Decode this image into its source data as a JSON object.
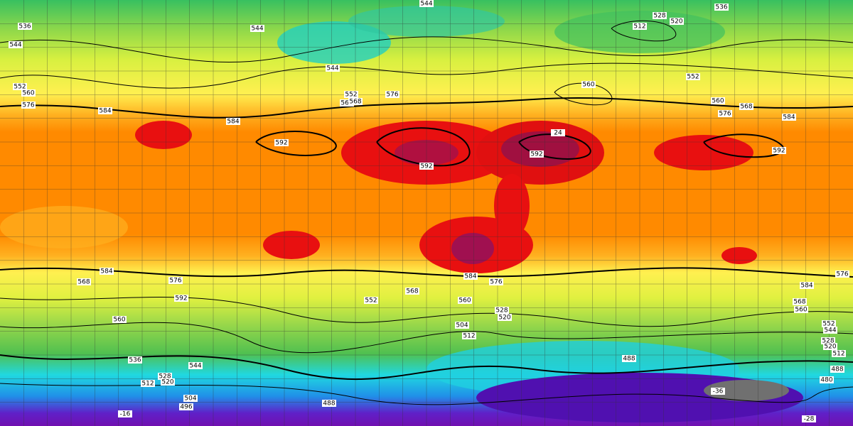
{
  "map": {
    "contour_labels": [
      "544",
      "536",
      "544",
      "536",
      "528",
      "520",
      "512",
      "544",
      "544",
      "552",
      "560",
      "568",
      "576",
      "584",
      "584",
      "592",
      "592",
      "592",
      "584",
      "592",
      "552",
      "560",
      "560",
      "568",
      "576",
      "552",
      "560",
      "576",
      "584",
      "576",
      "568",
      "592",
      "560",
      "536",
      "528",
      "520",
      "544",
      "512",
      "504",
      "496",
      "488",
      "552",
      "568",
      "584",
      "576",
      "560",
      "528",
      "520",
      "512",
      "504",
      "488",
      "584",
      "576",
      "568",
      "560",
      "552",
      "544",
      "528",
      "520",
      "512",
      "488",
      "480",
      "24",
      "-36",
      "-28",
      "-16"
    ]
  }
}
